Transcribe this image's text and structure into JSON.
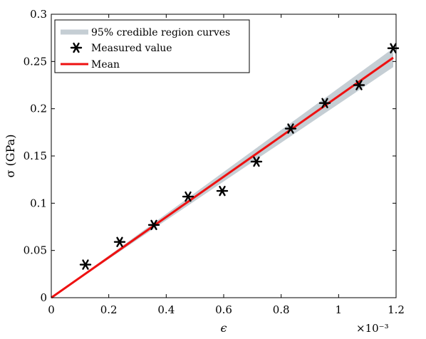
{
  "chart_data": {
    "type": "line",
    "x_exponent_label": "×10⁻³",
    "x_ticks": [
      0,
      0.2,
      0.4,
      0.6,
      0.8,
      1.0,
      1.2
    ],
    "x_tick_labels": [
      "0",
      "0.2",
      "0.4",
      "0.6",
      "0.8",
      "1",
      "1.2"
    ],
    "xlim": [
      0,
      1.2
    ],
    "ylim": [
      0,
      0.3
    ],
    "y_ticks": [
      0,
      0.05,
      0.1,
      0.15,
      0.2,
      0.25,
      0.3
    ],
    "y_tick_labels": [
      "0",
      "0.05",
      "0.1",
      "0.15",
      "0.2",
      "0.25",
      "0.3"
    ],
    "xlabel": "ϵ",
    "ylabel": "σ (GPa)",
    "grid": false,
    "legend_position": "top-left",
    "series": [
      {
        "name": "95% credible region curves",
        "kind": "band",
        "color": "#c5ced4",
        "x": [
          0,
          1.19
        ],
        "lower": [
          0,
          0.244
        ],
        "upper": [
          0,
          0.264
        ]
      },
      {
        "name": "Measured value",
        "kind": "scatter",
        "marker": "asterisk",
        "color": "#000000",
        "x": [
          0.119,
          0.238,
          0.357,
          0.476,
          0.595,
          0.714,
          0.833,
          0.952,
          1.071,
          1.19
        ],
        "y": [
          0.035,
          0.059,
          0.077,
          0.107,
          0.113,
          0.144,
          0.179,
          0.206,
          0.225,
          0.264
        ]
      },
      {
        "name": "Mean",
        "kind": "line",
        "color": "#ee1111",
        "x": [
          0,
          1.19
        ],
        "y": [
          0,
          0.254
        ]
      }
    ]
  }
}
